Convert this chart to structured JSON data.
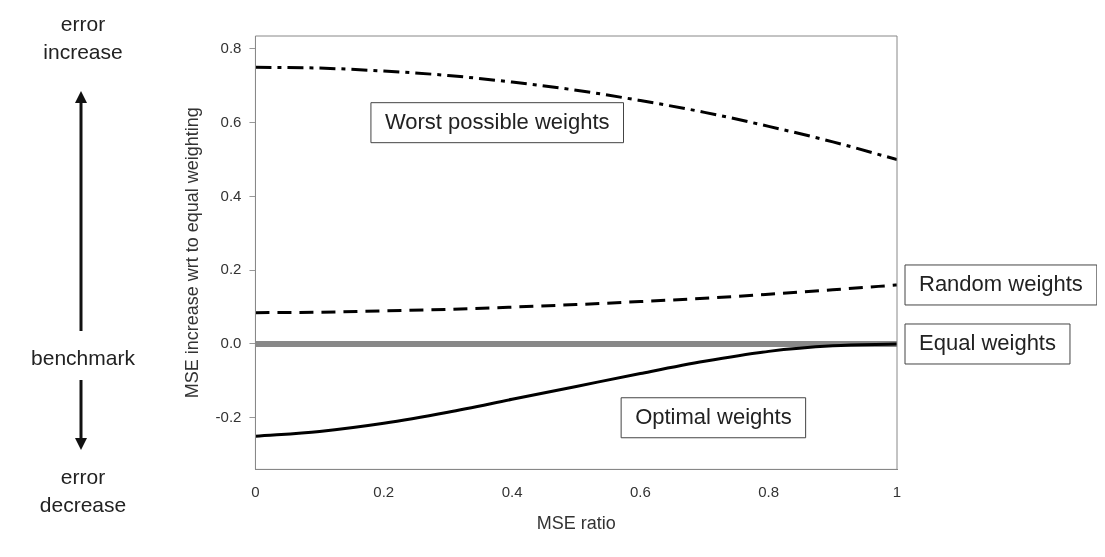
{
  "chart_data": {
    "type": "line",
    "xlabel": "MSE ratio",
    "ylabel": "MSE increase wrt to equal weighting",
    "xlim": [
      0,
      1
    ],
    "xticks": [
      0,
      0.2,
      0.4,
      0.6,
      0.8,
      1
    ],
    "ylim": [
      -0.34,
      0.835
    ],
    "yticks": [
      -0.2,
      {
        "value": 0,
        "label": "0.0"
      },
      0.2,
      0.4,
      0.6,
      0.8
    ],
    "x": [
      0,
      0.1,
      0.2,
      0.3,
      0.4,
      0.5,
      0.6,
      0.7,
      0.8,
      0.9,
      1
    ],
    "series": [
      {
        "name": "Worst possible weights",
        "color": "#000000",
        "line_style": "dashdot",
        "values": [
          0.75,
          0.748,
          0.74,
          0.728,
          0.71,
          0.688,
          0.66,
          0.628,
          0.59,
          0.548,
          0.5
        ]
      },
      {
        "name": "Random weights",
        "color": "#000000",
        "line_style": "dashed",
        "values": [
          0.085,
          0.086,
          0.09,
          0.094,
          0.1,
          0.107,
          0.115,
          0.124,
          0.135,
          0.147,
          0.16
        ]
      },
      {
        "name": "Equal weights",
        "color": "#888888",
        "line_style": "solid",
        "values": [
          0,
          0,
          0,
          0,
          0,
          0,
          0,
          0,
          0,
          0,
          0
        ]
      },
      {
        "name": "Optimal weights",
        "color": "#000000",
        "line_style": "solid",
        "values": [
          -0.25,
          -0.237,
          -0.215,
          -0.185,
          -0.15,
          -0.115,
          -0.08,
          -0.047,
          -0.02,
          -0.005,
          0
        ]
      }
    ],
    "annotations": [
      "error increase",
      "benchmark",
      "error decrease"
    ],
    "grid": false,
    "legend": false,
    "marker": "none"
  }
}
